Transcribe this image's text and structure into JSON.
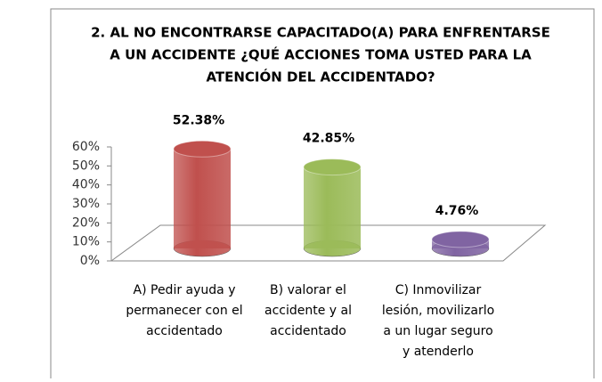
{
  "chart_data": {
    "type": "bar",
    "title": [
      "2. AL NO ENCONTRARSE CAPACITADO(A) PARA ENFRENTARSE",
      "A UN ACCIDENTE ¿QUÉ ACCIONES TOMA USTED PARA LA",
      "ATENCIÓN DEL ACCIDENTADO?"
    ],
    "categories": [
      [
        "A) Pedir ayuda y",
        "permanecer con el",
        "accidentado"
      ],
      [
        "B) valorar el",
        "accidente y al",
        "accidentado"
      ],
      [
        "C) Inmovilizar",
        "lesión, movilizarlo",
        "a un lugar seguro",
        "y atenderlo"
      ]
    ],
    "values": [
      52.38,
      42.85,
      4.76
    ],
    "value_labels": [
      "52.38%",
      "42.85%",
      "4.76%"
    ],
    "colors": [
      "#c0504d",
      "#9bbb59",
      "#8064a2"
    ],
    "ylim": [
      0,
      60
    ],
    "yticks": [
      {
        "value": 0,
        "label": "0%"
      },
      {
        "value": 10,
        "label": "10%"
      },
      {
        "value": 20,
        "label": "20%"
      },
      {
        "value": 30,
        "label": "30%"
      },
      {
        "value": 40,
        "label": "40%"
      },
      {
        "value": 50,
        "label": "50%"
      },
      {
        "value": 60,
        "label": "60%"
      }
    ]
  }
}
